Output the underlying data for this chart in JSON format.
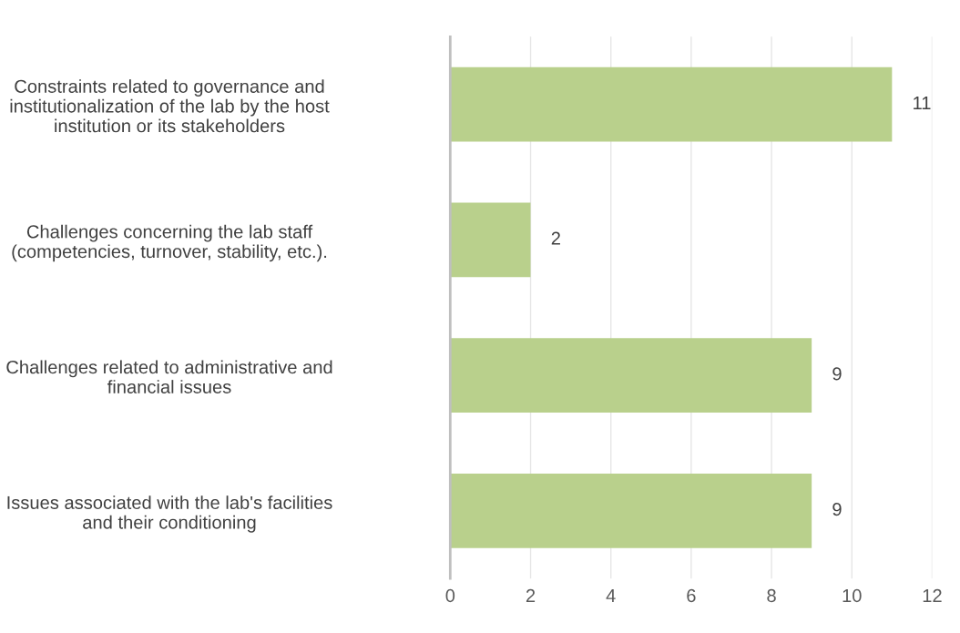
{
  "chart_data": {
    "type": "bar",
    "orientation": "horizontal",
    "categories": [
      "Constraints related to governance and\ninstitutionalization of the lab by the host\ninstitution or its stakeholders",
      "Challenges concerning the lab staff\n(competencies, turnover, stability, etc.).",
      "Challenges related to administrative and\nfinancial issues",
      "Issues associated with the lab's facilities\nand their conditioning"
    ],
    "values": [
      11,
      2,
      9,
      9
    ],
    "color": "#b9d08c",
    "xlim": [
      0,
      12
    ],
    "xticks": [
      0,
      2,
      4,
      6,
      8,
      10,
      12
    ],
    "grid": "x",
    "data_labels": true
  }
}
